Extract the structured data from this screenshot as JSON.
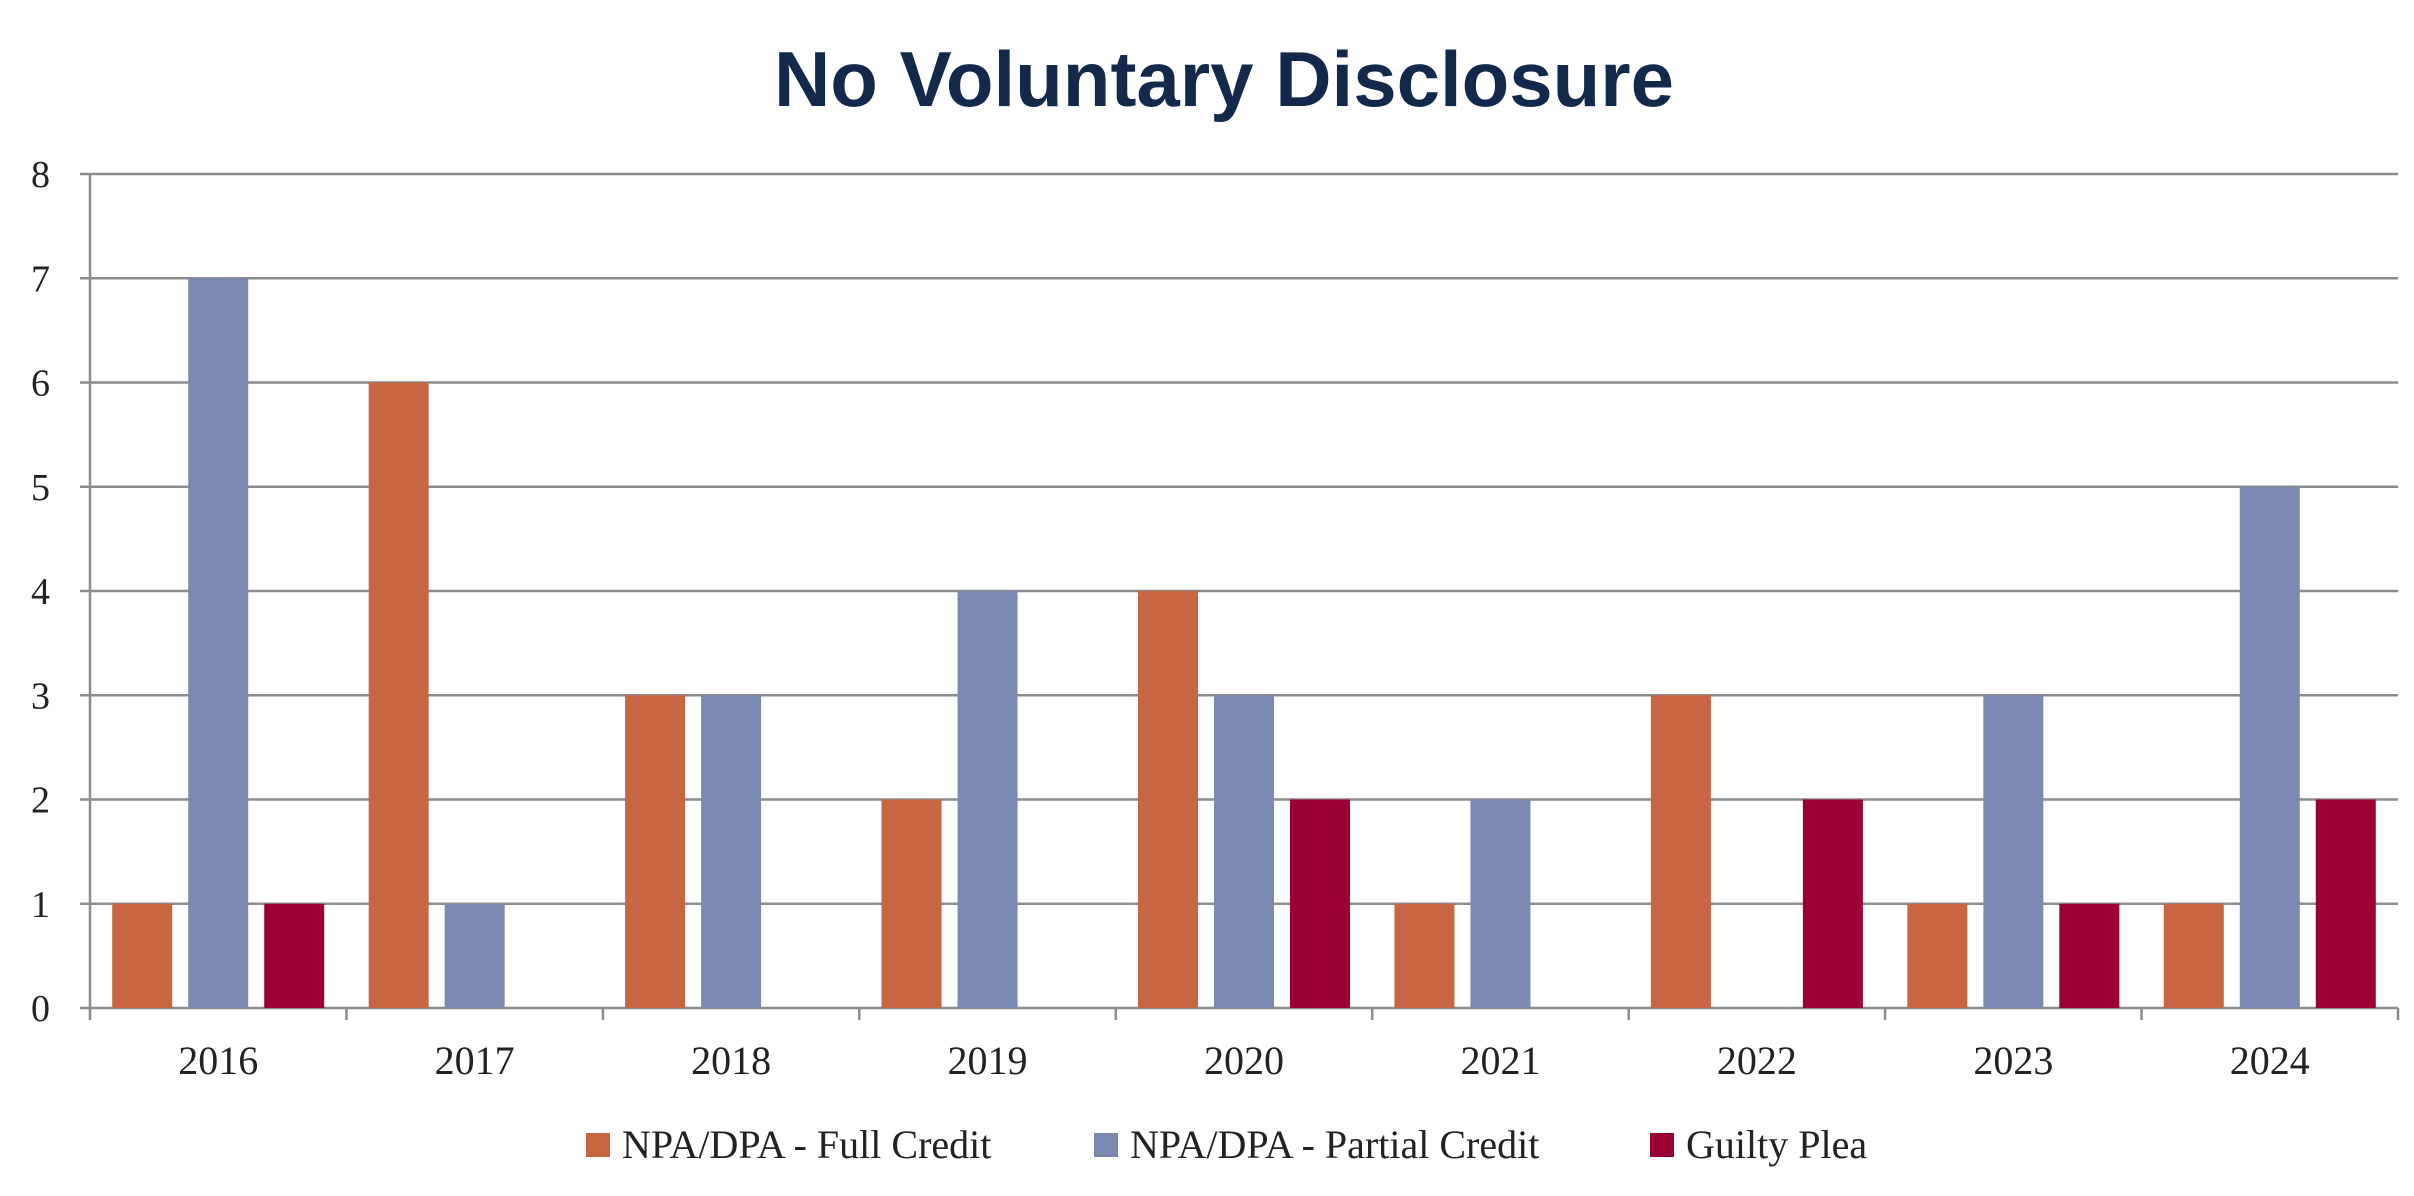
{
  "chart_data": {
    "type": "bar",
    "title": "No Voluntary Disclosure",
    "xlabel": "",
    "ylabel": "",
    "categories": [
      "2016",
      "2017",
      "2018",
      "2019",
      "2020",
      "2021",
      "2022",
      "2023",
      "2024"
    ],
    "series": [
      {
        "name": "NPA/DPA - Full Credit",
        "color": "#c86644",
        "values": [
          1,
          6,
          3,
          2,
          4,
          1,
          3,
          1,
          1
        ]
      },
      {
        "name": "NPA/DPA - Partial Credit",
        "color": "#7b89b0",
        "values": [
          7,
          1,
          3,
          4,
          3,
          2,
          0,
          3,
          5
        ]
      },
      {
        "name": "Guilty Plea",
        "color": "#9b0034",
        "values": [
          1,
          0,
          0,
          0,
          2,
          0,
          2,
          1,
          2
        ]
      }
    ],
    "ylim": [
      0,
      8
    ],
    "yticks": [
      "0",
      "1",
      "2",
      "3",
      "4",
      "5",
      "6",
      "7",
      "8"
    ],
    "grid": true,
    "legend_position": "bottom",
    "colors": {
      "title": "#13294b",
      "grid": "#8c8c8c",
      "text": "#222222"
    }
  }
}
